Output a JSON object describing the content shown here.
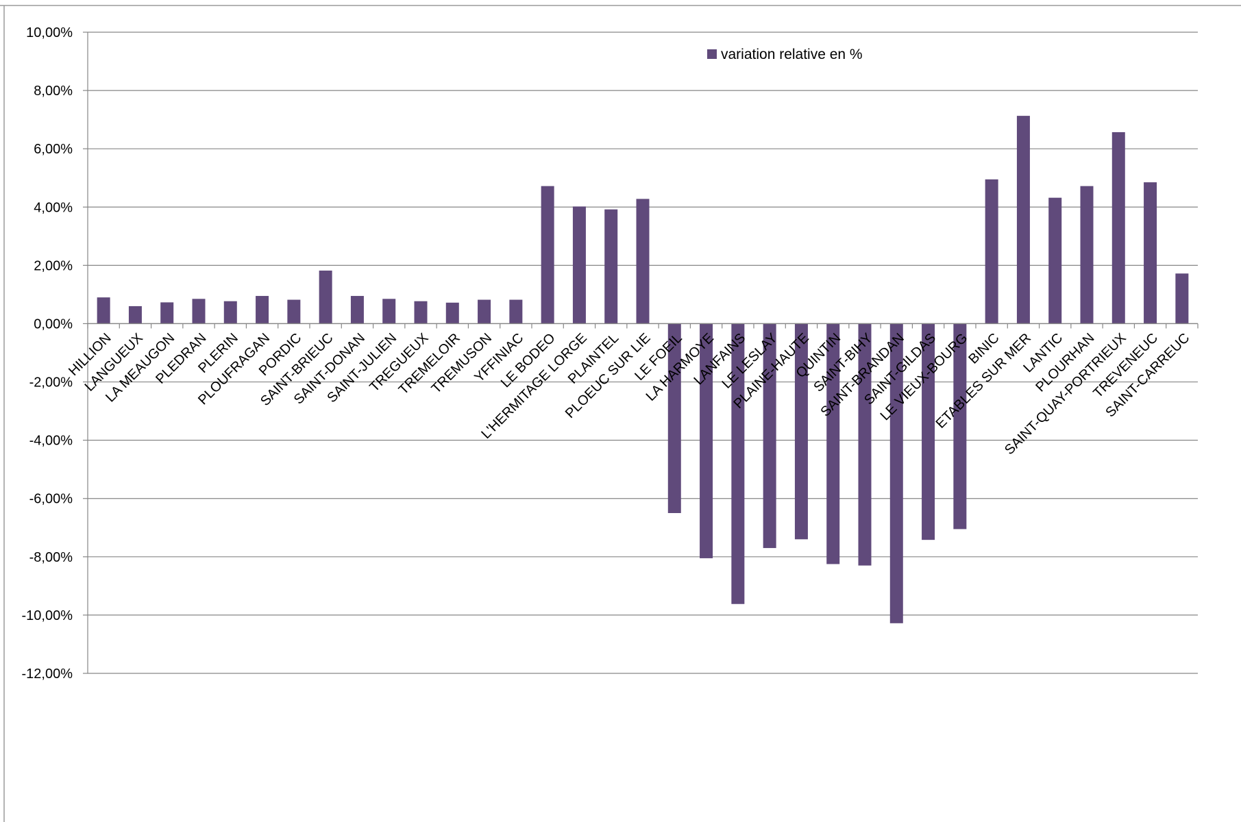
{
  "chart_data": {
    "type": "bar",
    "title": "",
    "xlabel": "",
    "ylabel": "",
    "ylim": [
      -0.12,
      0.1
    ],
    "grid": true,
    "legend_position": "top-right",
    "bar_color": "#604a7b",
    "gridline_color": "#868686",
    "yticks": [
      "10,00%",
      "8,00%",
      "6,00%",
      "4,00%",
      "2,00%",
      "0,00%",
      "-2,00%",
      "-4,00%",
      "-6,00%",
      "-8,00%",
      "-10,00%",
      "-12,00%"
    ],
    "ytick_values": [
      0.1,
      0.08,
      0.06,
      0.04,
      0.02,
      0.0,
      -0.02,
      -0.04,
      -0.06,
      -0.08,
      -0.1,
      -0.12
    ],
    "categories": [
      "HILLION",
      "LANGUEUX",
      "LA MEAUGON",
      "PLEDRAN",
      "PLERIN",
      "PLOUFRAGAN",
      "PORDIC",
      "SAINT-BRIEUC",
      "SAINT-DONAN",
      "SAINT-JULIEN",
      "TREGUEUX",
      "TREMELOIR",
      "TREMUSON",
      "YFFINIAC",
      "LE BODEO",
      "L'HERMITAGE LORGE",
      "PLAINTEL",
      "PLOEUC SUR LIE",
      "LE FOEIL",
      "LA HARMOYE",
      "LANFAINS",
      "LE LESLAY",
      "PLAINE-HAUTE",
      "QUINTIN",
      "SAINT-BIHY",
      "SAINT-BRANDAN",
      "SAINT-GILDAS",
      "LE VIEUX-BOURG",
      "BINIC",
      "ETABLES SUR MER",
      "LANTIC",
      "PLOURHAN",
      "SAINT-QUAY-PORTRIEUX",
      "TREVENEUC",
      "SAINT-CARREUC"
    ],
    "series": [
      {
        "name": "variation relative en %",
        "values": [
          0.009,
          0.006,
          0.0073,
          0.0085,
          0.0077,
          0.0095,
          0.0082,
          0.0182,
          0.0095,
          0.0085,
          0.0077,
          0.0072,
          0.0082,
          0.0082,
          0.0472,
          0.0402,
          0.0392,
          0.0428,
          -0.065,
          -0.0805,
          -0.0962,
          -0.077,
          -0.074,
          -0.0825,
          -0.083,
          -0.1028,
          -0.0742,
          -0.0705,
          0.0495,
          0.0713,
          0.0432,
          0.0472,
          0.0657,
          0.0485,
          0.0172
        ]
      }
    ]
  }
}
